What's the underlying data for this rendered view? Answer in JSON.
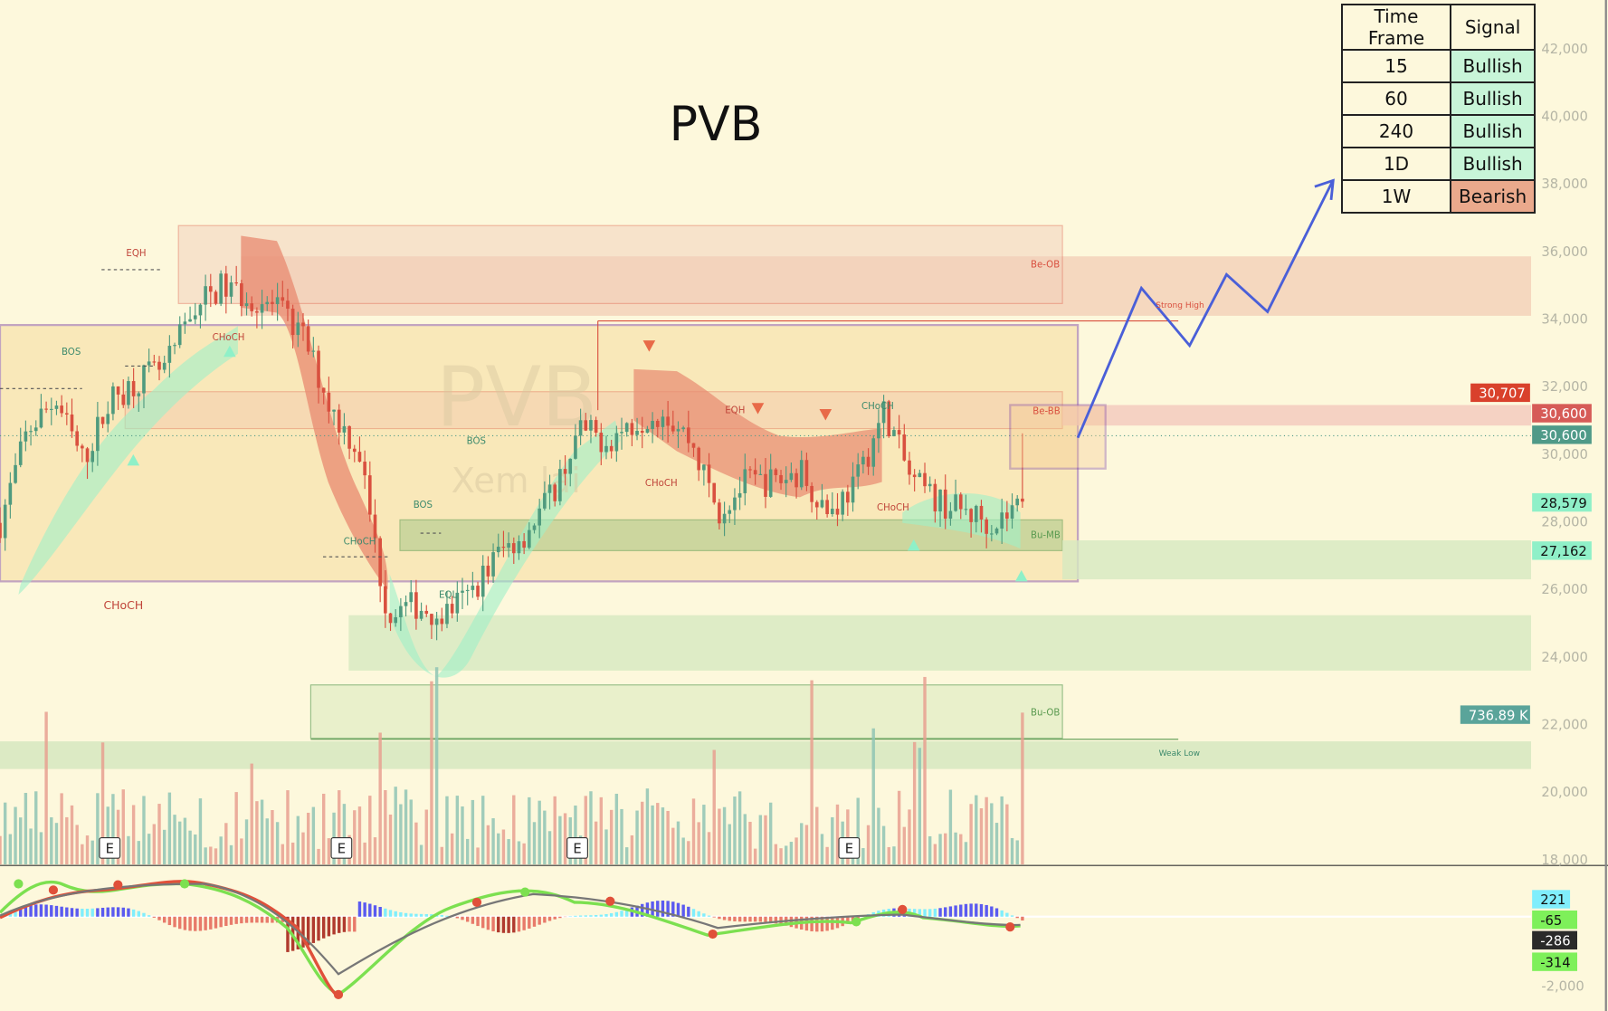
{
  "title": "PVB",
  "watermark": {
    "line1": "PVB",
    "line2": "Xem lại"
  },
  "signal_table": {
    "headers": [
      "Time Frame",
      "Signal"
    ],
    "rows": [
      {
        "tf": "15",
        "signal": "Bullish",
        "color": "#c8f5d8"
      },
      {
        "tf": "60",
        "signal": "Bullish",
        "color": "#c8f5d8"
      },
      {
        "tf": "240",
        "signal": "Bullish",
        "color": "#c8f5d8"
      },
      {
        "tf": "1D",
        "signal": "Bullish",
        "color": "#c8f5d8"
      },
      {
        "tf": "1W",
        "signal": "Bearish",
        "color": "#eaa98c"
      }
    ]
  },
  "price_axis": [
    "42,000",
    "40,000",
    "38,000",
    "36,000",
    "34,000",
    "32,000",
    "30,000",
    "28,000",
    "26,000",
    "24,000",
    "22,000",
    "20,000",
    "18,000"
  ],
  "macd_axis": [
    "-2,000"
  ],
  "price_labels": [
    {
      "text": "30,707",
      "bg": "#d9412c",
      "fg": "#ffffff",
      "price": 30707
    },
    {
      "text": "30,600",
      "bg": "#d65b57",
      "fg": "#ffffff",
      "price": 30600
    },
    {
      "text": "30,600",
      "bg": "#4f9a88",
      "fg": "#ffffff",
      "price": 30600
    },
    {
      "text": "28,579",
      "bg": "#8ff0c8",
      "fg": "#111111",
      "price": 28579
    },
    {
      "text": "27,162",
      "bg": "#8ff0c8",
      "fg": "#111111",
      "price": 27162
    },
    {
      "text": "736.89 K",
      "bg": "#5aa49a",
      "fg": "#ffffff",
      "price": 22300
    }
  ],
  "macd_labels": [
    {
      "text": "221",
      "bg": "#80eefc",
      "fg": "#111"
    },
    {
      "text": "-65",
      "bg": "#7ef05a",
      "fg": "#111"
    },
    {
      "text": "-286",
      "bg": "#2a2a2a",
      "fg": "#fff"
    },
    {
      "text": "-314",
      "bg": "#7ef05a",
      "fg": "#111"
    }
  ],
  "zones": {
    "be_ob": "Be-OB",
    "be_bb": "Be-BB",
    "bu_mb": "Bu-MB",
    "bu_ob": "Bu-OB",
    "strong_high": "Strong High",
    "weak_low": "Weak Low"
  },
  "structure_labels": [
    {
      "text": "EQH",
      "color": "#c0453a"
    },
    {
      "text": "BOS",
      "color": "#3d8a6c"
    },
    {
      "text": "CHoCH",
      "color": "#c0453a"
    },
    {
      "text": "CHoCH",
      "color": "#c0453a"
    },
    {
      "text": "CHoCH",
      "color": "#3d8a6c"
    },
    {
      "text": "BOS",
      "color": "#3d8a6c"
    },
    {
      "text": "BOS",
      "color": "#3d8a6c"
    },
    {
      "text": "EQL",
      "color": "#3d8a6c"
    },
    {
      "text": "CHoCH",
      "color": "#c0453a"
    },
    {
      "text": "EQH",
      "color": "#c0453a"
    },
    {
      "text": "CHoCH",
      "color": "#3d8a6c"
    },
    {
      "text": "CHoCH",
      "color": "#c0453a"
    }
  ],
  "earnings_marker": "E",
  "colors": {
    "up": "#4f9a7e",
    "down": "#d9503f",
    "projection": "#4a5fd8",
    "range_box": "#7b3fa0"
  },
  "chart_data": {
    "type": "candlestick",
    "symbol": "PVB",
    "ylim": [
      18000,
      42000
    ],
    "close_path": [
      27950,
      30680,
      31590,
      29770,
      31590,
      32200,
      32500,
      34320,
      34930,
      34630,
      34320,
      33410,
      31290,
      30070,
      25220,
      25520,
      25220,
      25820,
      27040,
      27640,
      28860,
      30680,
      30380,
      30980,
      31290,
      30380,
      28250,
      29160,
      29160,
      29470,
      28250,
      29160,
      31290,
      29160,
      28560,
      28250,
      27950,
      28579
    ],
    "last_close": 28579,
    "last_high": 30600,
    "last_volume": "736.89 K",
    "projection_prices": [
      30600,
      34900,
      33200,
      35300,
      34200,
      38100
    ]
  }
}
